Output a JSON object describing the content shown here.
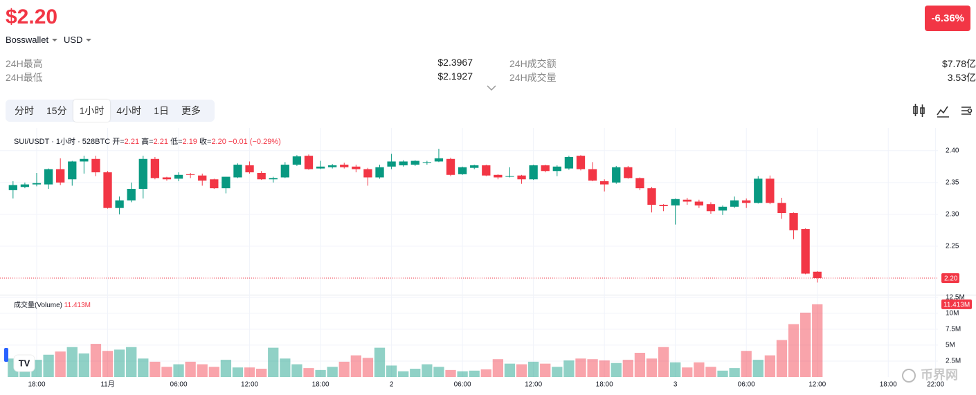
{
  "header": {
    "price": "$2.20",
    "change": "-6.36%",
    "source": "Bosswallet",
    "currency": "USD",
    "stats": [
      {
        "label": "24H最高",
        "value": "$2.3967"
      },
      {
        "label": "24H最低",
        "value": "$2.1927"
      },
      {
        "label": "24H成交额",
        "value": "$7.78亿"
      },
      {
        "label": "24H成交量",
        "value": "3.53亿"
      }
    ]
  },
  "tabs": {
    "items": [
      "分时",
      "15分",
      "1小时",
      "4小时",
      "1日",
      "更多"
    ],
    "active": 2
  },
  "watermark": "币界网",
  "chart_data": {
    "type": "candlestick",
    "legend": {
      "symbol": "SUI/USDT · 1小时 · 528BTC",
      "fields": [
        {
          "label": "开=",
          "value": "2.21"
        },
        {
          "label": "高=",
          "value": "2.21"
        },
        {
          "label": "低=",
          "value": "2.19"
        },
        {
          "label": "收=",
          "value": "2.20"
        }
      ],
      "change": "−0.01 (−0.29%)"
    },
    "up_color": "#089981",
    "down_color": "#f23645",
    "open": [
      2.338,
      2.343,
      2.347,
      2.347,
      2.371,
      2.355,
      2.383,
      2.387,
      2.366,
      2.31,
      2.322,
      2.34,
      2.387,
      2.358,
      2.356,
      2.363,
      2.361,
      2.355,
      2.341,
      2.358,
      2.377,
      2.365,
      2.355,
      2.358,
      2.378,
      2.392,
      2.372,
      2.374,
      2.378,
      2.375,
      2.371,
      2.358,
      2.375,
      2.377,
      2.378,
      2.382,
      2.383,
      2.387,
      2.363,
      2.373,
      2.377,
      2.362,
      2.36,
      2.361,
      2.355,
      2.377,
      2.368,
      2.372,
      2.392,
      2.371,
      2.352,
      2.35,
      2.374,
      2.357,
      2.341,
      2.315,
      2.314,
      2.323,
      2.32,
      2.316,
      2.306,
      2.312,
      2.322,
      2.318,
      2.356,
      2.318,
      2.302,
      2.277,
      2.21
    ],
    "high": [
      2.352,
      2.35,
      2.365,
      2.372,
      2.388,
      2.384,
      2.392,
      2.392,
      2.368,
      2.328,
      2.35,
      2.392,
      2.39,
      2.359,
      2.366,
      2.365,
      2.364,
      2.356,
      2.359,
      2.38,
      2.383,
      2.368,
      2.359,
      2.382,
      2.393,
      2.394,
      2.384,
      2.379,
      2.381,
      2.378,
      2.373,
      2.378,
      2.395,
      2.385,
      2.385,
      2.384,
      2.403,
      2.389,
      2.375,
      2.378,
      2.378,
      2.363,
      2.374,
      2.362,
      2.378,
      2.378,
      2.377,
      2.392,
      2.393,
      2.382,
      2.355,
      2.376,
      2.376,
      2.358,
      2.343,
      2.316,
      2.325,
      2.326,
      2.323,
      2.319,
      2.314,
      2.328,
      2.325,
      2.36,
      2.361,
      2.326,
      2.303,
      2.278,
      2.211
    ],
    "low": [
      2.325,
      2.341,
      2.344,
      2.34,
      2.346,
      2.345,
      2.364,
      2.36,
      2.309,
      2.3,
      2.319,
      2.325,
      2.355,
      2.353,
      2.352,
      2.357,
      2.345,
      2.34,
      2.333,
      2.357,
      2.364,
      2.354,
      2.35,
      2.357,
      2.376,
      2.37,
      2.371,
      2.372,
      2.372,
      2.366,
      2.345,
      2.356,
      2.371,
      2.375,
      2.376,
      2.378,
      2.382,
      2.36,
      2.362,
      2.371,
      2.36,
      2.355,
      2.358,
      2.348,
      2.354,
      2.366,
      2.36,
      2.37,
      2.369,
      2.352,
      2.336,
      2.348,
      2.356,
      2.338,
      2.303,
      2.305,
      2.284,
      2.315,
      2.31,
      2.301,
      2.299,
      2.31,
      2.31,
      2.317,
      2.316,
      2.293,
      2.261,
      2.206,
      2.193
    ],
    "close": [
      2.346,
      2.347,
      2.349,
      2.371,
      2.35,
      2.383,
      2.387,
      2.366,
      2.31,
      2.322,
      2.34,
      2.387,
      2.357,
      2.355,
      2.362,
      2.362,
      2.353,
      2.341,
      2.359,
      2.378,
      2.366,
      2.355,
      2.357,
      2.378,
      2.391,
      2.371,
      2.375,
      2.377,
      2.374,
      2.371,
      2.358,
      2.374,
      2.383,
      2.383,
      2.384,
      2.382,
      2.388,
      2.362,
      2.374,
      2.377,
      2.361,
      2.358,
      2.36,
      2.355,
      2.377,
      2.368,
      2.375,
      2.39,
      2.371,
      2.353,
      2.347,
      2.374,
      2.357,
      2.341,
      2.315,
      2.313,
      2.324,
      2.32,
      2.314,
      2.305,
      2.312,
      2.322,
      2.318,
      2.356,
      2.318,
      2.302,
      2.275,
      2.207,
      2.2
    ],
    "last_price": {
      "value": 2.2,
      "label": "2.20"
    },
    "ylim": [
      2.175,
      2.428
    ],
    "yticks": [
      {
        "value": 2.25,
        "label": "2.25"
      },
      {
        "value": 2.3,
        "label": "2.30"
      },
      {
        "value": 2.35,
        "label": "2.35"
      },
      {
        "value": 2.4,
        "label": "2.40"
      }
    ],
    "xlim": [
      -0.4,
      78.2
    ],
    "xticks": [
      {
        "value": 2,
        "label": "18:00"
      },
      {
        "value": 8,
        "label": "11月"
      },
      {
        "value": 14,
        "label": "06:00"
      },
      {
        "value": 20,
        "label": "12:00"
      },
      {
        "value": 26,
        "label": "18:00"
      },
      {
        "value": 32,
        "label": "2"
      },
      {
        "value": 38,
        "label": "06:00"
      },
      {
        "value": 44,
        "label": "12:00"
      },
      {
        "value": 50,
        "label": "18:00"
      },
      {
        "value": 56,
        "label": "3"
      },
      {
        "value": 62,
        "label": "06:00"
      },
      {
        "value": 68,
        "label": "12:00"
      },
      {
        "value": 74,
        "label": "18:00"
      },
      {
        "value": 78,
        "label": "22:00"
      }
    ],
    "volume": {
      "name": "成交量(Volume)",
      "value_label": "11.413M",
      "values": [
        2.9,
        3.3,
        2.7,
        3.5,
        4.0,
        4.7,
        3.7,
        5.2,
        4.1,
        4.3,
        4.7,
        2.9,
        2.4,
        1.6,
        2.0,
        2.4,
        2.0,
        1.6,
        2.7,
        1.5,
        1.5,
        1.3,
        4.6,
        2.9,
        2.0,
        1.4,
        1.1,
        1.6,
        2.4,
        3.4,
        3.0,
        4.6,
        1.8,
        0.9,
        1.3,
        2.0,
        1.6,
        1.1,
        0.9,
        1.0,
        1.2,
        2.8,
        2.1,
        2.0,
        2.4,
        2.1,
        1.6,
        2.6,
        2.9,
        2.8,
        2.6,
        2.2,
        2.7,
        3.8,
        2.9,
        4.7,
        2.3,
        1.5,
        2.3,
        1.6,
        1.0,
        1.4,
        4.1,
        2.7,
        3.4,
        5.8,
        8.3,
        10.1,
        11.413
      ],
      "ylim": [
        0,
        12.7
      ],
      "yticks": [
        {
          "value": 2.5,
          "label": "2.5M"
        },
        {
          "value": 5,
          "label": "5M"
        },
        {
          "value": 7.5,
          "label": "7.5M"
        },
        {
          "value": 10,
          "label": "10M"
        },
        {
          "value": 12.5,
          "label": "12.5M"
        }
      ]
    }
  }
}
